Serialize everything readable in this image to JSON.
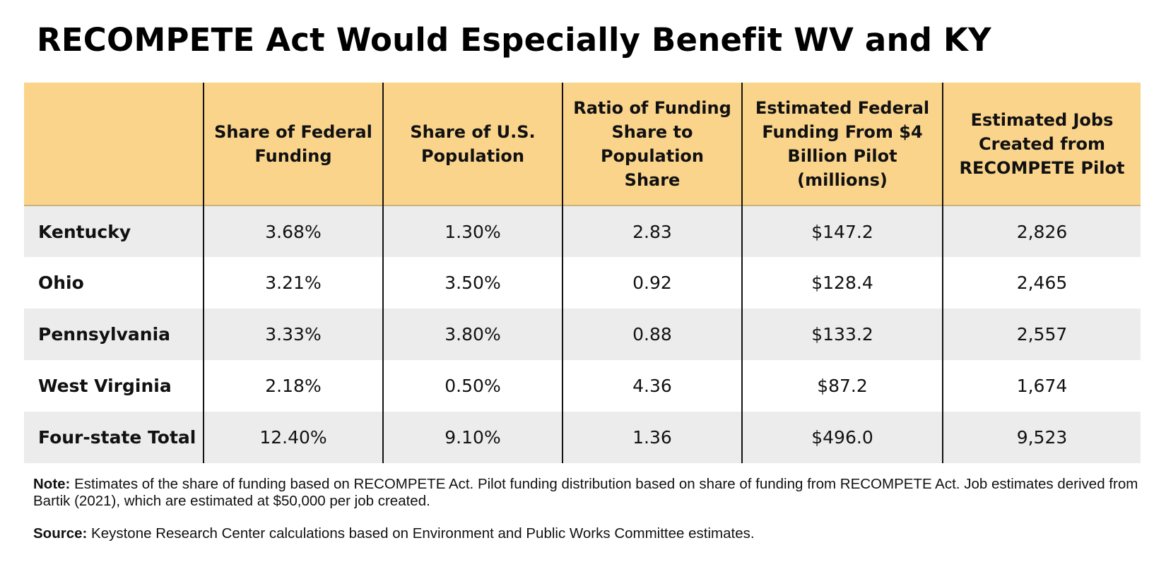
{
  "title": "RECOMPETE Act Would Especially Benefit WV and KY",
  "table": {
    "headers": [
      "",
      "Share of Federal Funding",
      "Share of U.S. Population",
      "Ratio of Funding Share to Population Share",
      "Estimated Federal Funding From $4 Billion Pilot (millions)",
      "Estimated Jobs Created from RECOMPETE Pilot"
    ],
    "rows": [
      [
        "Kentucky",
        "3.68%",
        "1.30%",
        "2.83",
        "$147.2",
        "2,826"
      ],
      [
        "Ohio",
        "3.21%",
        "3.50%",
        "0.92",
        "$128.4",
        "2,465"
      ],
      [
        "Pennsylvania",
        "3.33%",
        "3.80%",
        "0.88",
        "$133.2",
        "2,557"
      ],
      [
        "West Virginia",
        "2.18%",
        "0.50%",
        "4.36",
        "$87.2",
        "1,674"
      ],
      [
        "Four-state Total",
        "12.40%",
        "9.10%",
        "1.36",
        "$496.0",
        "9,523"
      ]
    ]
  },
  "note": {
    "label": "Note:",
    "text": " Estimates of the share of funding based on RECOMPETE Act. Pilot funding distribution based on share of funding from RECOMPETE Act. Job estimates derived from Bartik (2021), which are estimated at $50,000 per job created."
  },
  "source": {
    "label": "Source:",
    "text": " Keystone Research Center calculations based on Environment and Public Works Committee estimates."
  },
  "colors": {
    "header_bg": "#fad48b",
    "row_shaded_bg": "#ececec",
    "row_plain_bg": "#ffffff"
  }
}
